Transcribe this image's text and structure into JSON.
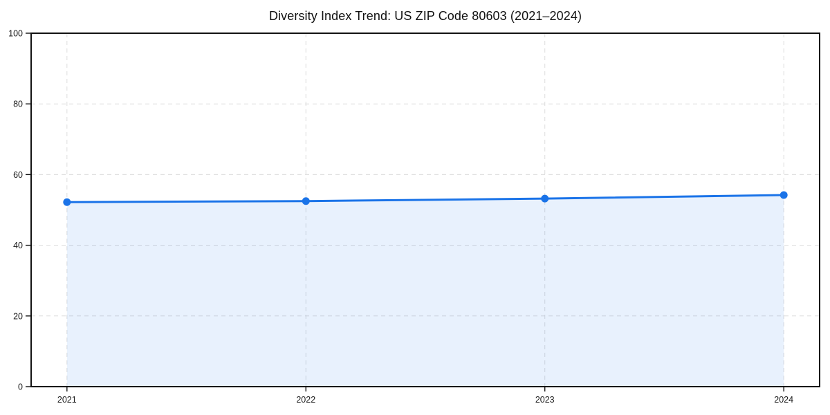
{
  "title": "Diversity Index Trend: US ZIP Code 80603 (2021–2024)",
  "chart_data": {
    "type": "area",
    "title": "Diversity Index Trend: US ZIP Code 80603 (2021–2024)",
    "categories": [
      "2021",
      "2022",
      "2023",
      "2024"
    ],
    "values": [
      52.2,
      52.5,
      53.2,
      54.2
    ],
    "xlabel": "",
    "ylabel": "",
    "ylim": [
      0,
      100
    ],
    "yticks": [
      0,
      20,
      40,
      60,
      80,
      100
    ],
    "grid": "dashed",
    "legend": "none",
    "colors": {
      "line": "#1a73e8",
      "marker": "#1a73e8",
      "fill": "#1a73e8",
      "fill_opacity": 0.1,
      "grid": "#dcdcdc",
      "axis": "#111111",
      "tick_label": "#1a1a1a",
      "background": "#ffffff"
    }
  }
}
